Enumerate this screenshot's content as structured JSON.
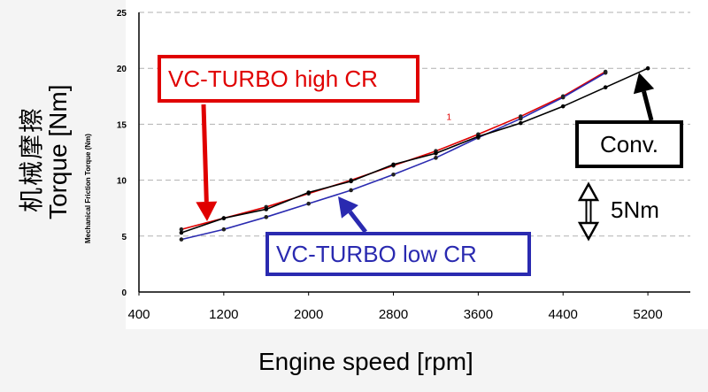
{
  "chart_data": {
    "type": "line",
    "xlabel": "Engine speed [rpm]",
    "ylabel_cn": "机械摩擦",
    "ylabel_en": "Torque [Nm]",
    "ylabel_small": "Mechanical Friction Torque (Nm)",
    "xlim": [
      400,
      5600
    ],
    "ylim": [
      0,
      25
    ],
    "xticks": [
      "400",
      "1200",
      "2000",
      "2800",
      "3600",
      "4400",
      "5200"
    ],
    "yticks": [
      "0",
      "5",
      "10",
      "15",
      "20",
      "25"
    ],
    "grid": "horizontal dashed",
    "series": [
      {
        "name": "VC-TURBO high CR",
        "color": "#e00000",
        "x": [
          800,
          1200,
          1600,
          2000,
          2400,
          2800,
          3200,
          3600,
          4000,
          4400,
          4800
        ],
        "values": [
          5.6,
          6.6,
          7.6,
          8.8,
          10.0,
          11.3,
          12.6,
          14.1,
          15.7,
          17.5,
          19.7
        ]
      },
      {
        "name": "VC-TURBO low CR",
        "color": "#2a2ab0",
        "x": [
          800,
          1200,
          1600,
          2000,
          2400,
          2800,
          3200,
          3600,
          4000,
          4400,
          4800
        ],
        "values": [
          4.7,
          5.6,
          6.7,
          7.9,
          9.1,
          10.5,
          12.0,
          13.8,
          15.5,
          17.4,
          19.6
        ]
      },
      {
        "name": "Conv.",
        "color": "#000000",
        "x": [
          800,
          1200,
          1600,
          2000,
          2400,
          2800,
          3200,
          3600,
          4000,
          4400,
          4800,
          5200
        ],
        "values": [
          5.3,
          6.6,
          7.4,
          8.9,
          9.9,
          11.4,
          12.4,
          13.9,
          15.1,
          16.6,
          18.3,
          20.0
        ]
      }
    ],
    "annotations": {
      "high_cr": "VC-TURBO high CR",
      "low_cr": "VC-TURBO low CR",
      "conv": "Conv.",
      "scale": "5Nm",
      "stray_mark": "1"
    }
  }
}
